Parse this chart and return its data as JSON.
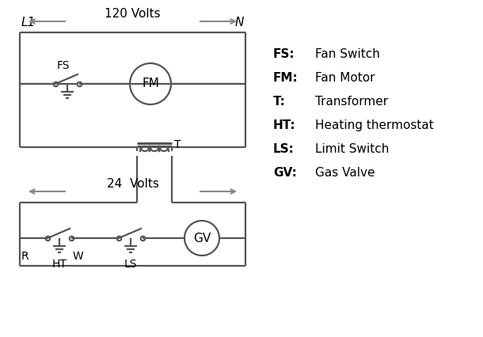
{
  "bg_color": "#ffffff",
  "line_color": "#555555",
  "arrow_color": "#888888",
  "text_color": "#000000",
  "legend_entries": [
    [
      "FS:",
      "Fan Switch"
    ],
    [
      "FM:",
      "Fan Motor"
    ],
    [
      "T:",
      "Transformer"
    ],
    [
      "HT:",
      "Heating thermostat"
    ],
    [
      "LS:",
      "Limit Switch"
    ],
    [
      "GV:",
      "Gas Valve"
    ]
  ],
  "title_L1": "L1",
  "title_N": "N",
  "volts_120": "120 Volts",
  "volts_24": "24  Volts",
  "label_T": "T",
  "label_FS": "FS",
  "label_FM": "FM",
  "label_R": "R",
  "label_W": "W",
  "label_HT": "HT",
  "label_LS": "LS",
  "label_GV": "GV"
}
